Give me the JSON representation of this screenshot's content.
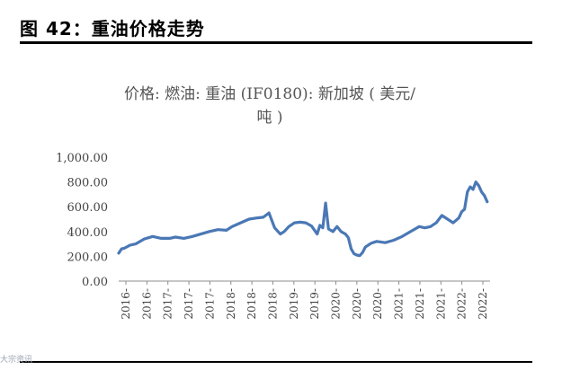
{
  "figure": {
    "title": "图 42：重油价格走势"
  },
  "watermark": {
    "text": "大宗资讯"
  },
  "chart_data": {
    "type": "line",
    "title": "价格: 燃油: 重油 (IF0180): 新加坡 ( 美元/\n吨 )",
    "xlabel": "",
    "ylabel": "",
    "ylim": [
      0,
      1000
    ],
    "yticks": [
      "0.00",
      "200.00",
      "400.00",
      "600.00",
      "800.00",
      "1,000.00"
    ],
    "ytick_values": [
      0,
      200,
      400,
      600,
      800,
      1000
    ],
    "xtick_labels": [
      "2016-",
      "2016-",
      "2017-",
      "2017-",
      "2017-",
      "2018-",
      "2018-",
      "2018-",
      "2019-",
      "2019-",
      "2020-",
      "2020-",
      "2020-",
      "2021-",
      "2021-",
      "2021-",
      "2022-",
      "2022-"
    ],
    "grid": false,
    "legend": "none",
    "color": "#4a78b5",
    "series": [
      {
        "x": [
          2016.0,
          2016.05,
          2016.1,
          2016.2,
          2016.3,
          2016.45,
          2016.6,
          2016.75,
          2016.9,
          2017.0,
          2017.15,
          2017.3,
          2017.45,
          2017.6,
          2017.75,
          2017.9,
          2018.0,
          2018.15,
          2018.3,
          2018.45,
          2018.55,
          2018.65,
          2018.75,
          2018.85,
          2018.92,
          2019.0,
          2019.1,
          2019.2,
          2019.3,
          2019.4,
          2019.5,
          2019.55,
          2019.6,
          2019.65,
          2019.7,
          2019.78,
          2019.85,
          2019.92,
          2020.0,
          2020.05,
          2020.1,
          2020.15,
          2020.2,
          2020.25,
          2020.3,
          2020.35,
          2020.45,
          2020.55,
          2020.7,
          2020.85,
          2021.0,
          2021.15,
          2021.3,
          2021.4,
          2021.5,
          2021.6,
          2021.7,
          2021.8,
          2021.9,
          2022.0,
          2022.05,
          2022.1,
          2022.15,
          2022.2,
          2022.25,
          2022.3,
          2022.35,
          2022.4,
          2022.45,
          2022.5
        ],
        "y": [
          225,
          260,
          265,
          290,
          300,
          340,
          360,
          345,
          345,
          355,
          345,
          360,
          380,
          400,
          415,
          410,
          440,
          470,
          500,
          510,
          515,
          550,
          430,
          380,
          400,
          440,
          470,
          475,
          470,
          445,
          380,
          450,
          430,
          630,
          420,
          400,
          440,
          400,
          380,
          350,
          260,
          220,
          210,
          205,
          230,
          275,
          305,
          320,
          310,
          330,
          360,
          400,
          440,
          430,
          440,
          470,
          530,
          500,
          470,
          510,
          560,
          580,
          720,
          760,
          740,
          800,
          770,
          720,
          690,
          640
        ]
      }
    ]
  }
}
